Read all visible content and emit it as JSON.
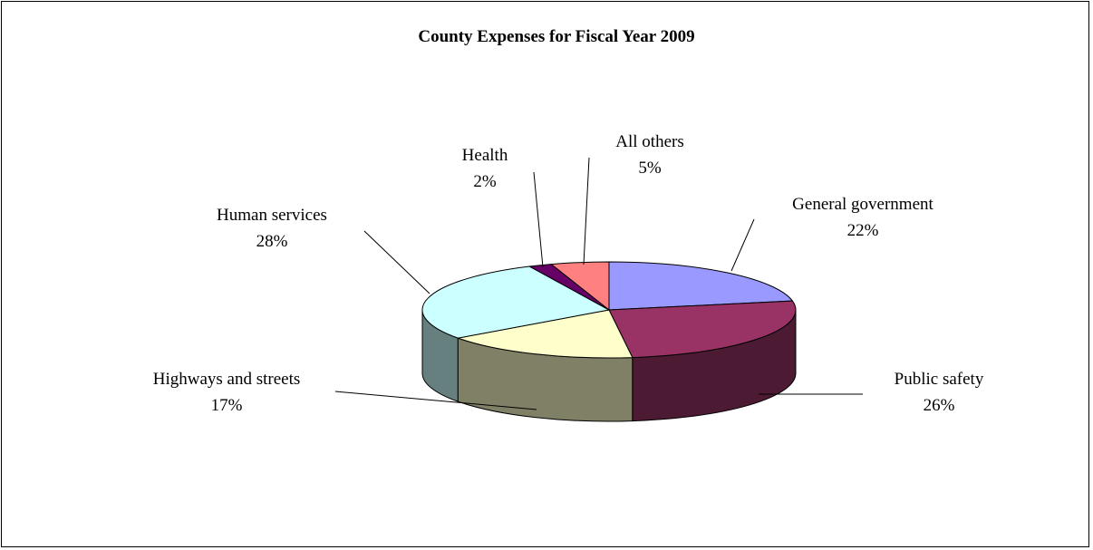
{
  "chart_data": {
    "type": "pie",
    "title": "County Expenses for Fiscal Year 2009",
    "three_d": true,
    "slices": [
      {
        "label": "General government",
        "value": 22,
        "display": "22%",
        "top_color": "#9999ff",
        "side_color": "#6666cc"
      },
      {
        "label": "Public safety",
        "value": 26,
        "display": "26%",
        "top_color": "#993366",
        "side_color": "#4d1a33"
      },
      {
        "label": "Highways and streets",
        "value": 17,
        "display": "17%",
        "top_color": "#ffffcc",
        "side_color": "#808066"
      },
      {
        "label": "Human services",
        "value": 28,
        "display": "28%",
        "top_color": "#ccffff",
        "side_color": "#668080"
      },
      {
        "label": "Health",
        "value": 2,
        "display": "2%",
        "top_color": "#660066",
        "side_color": "#330033"
      },
      {
        "label": "All others",
        "value": 5,
        "display": "5%",
        "top_color": "#ff8080",
        "side_color": "#804040"
      }
    ]
  }
}
